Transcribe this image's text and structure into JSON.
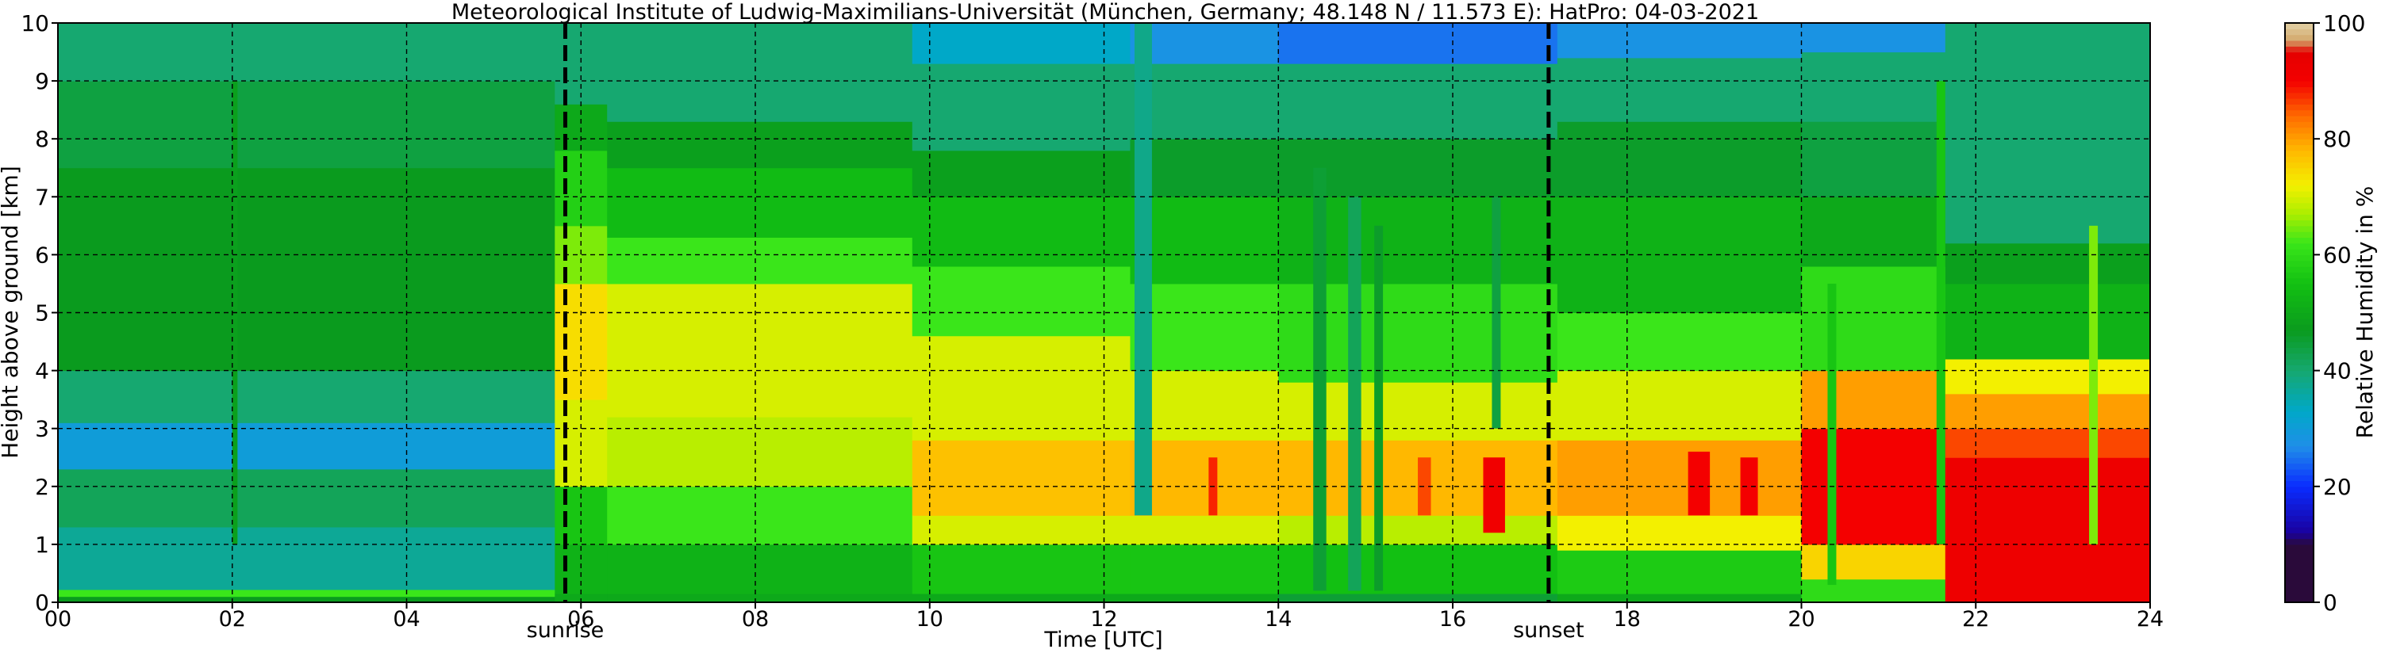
{
  "chart_data": {
    "type": "heatmap",
    "title": "Meteorological Institute of Ludwig-Maximilians-Universität (München, Germany; 48.148 N / 11.573 E):    HatPro: 04-03-2021",
    "xlabel": "Time [UTC]",
    "ylabel": "Height above ground [km]",
    "xlim": [
      0,
      24
    ],
    "ylim": [
      0,
      10
    ],
    "x_ticks": [
      "00",
      "02",
      "04",
      "06",
      "08",
      "10",
      "12",
      "14",
      "16",
      "18",
      "20",
      "22",
      "24"
    ],
    "y_ticks": [
      "0",
      "1",
      "2",
      "3",
      "4",
      "5",
      "6",
      "7",
      "8",
      "9",
      "10"
    ],
    "grid": true,
    "colorbar": {
      "label": "Relative Humidity in %",
      "ticks": [
        "0",
        "20",
        "40",
        "60",
        "80",
        "100"
      ],
      "range": [
        0,
        100
      ],
      "stops": [
        {
          "value": 0,
          "color": "#2a0a3a"
        },
        {
          "value": 10,
          "color": "#2a0a3a"
        },
        {
          "value": 12,
          "color": "#1a009e"
        },
        {
          "value": 20,
          "color": "#0a2cff"
        },
        {
          "value": 27,
          "color": "#1f8fe8"
        },
        {
          "value": 33,
          "color": "#00a8c8"
        },
        {
          "value": 40,
          "color": "#16a870"
        },
        {
          "value": 47,
          "color": "#0a9b1e"
        },
        {
          "value": 55,
          "color": "#12c012"
        },
        {
          "value": 62,
          "color": "#3ae61a"
        },
        {
          "value": 67,
          "color": "#aaee00"
        },
        {
          "value": 72,
          "color": "#f3f000"
        },
        {
          "value": 78,
          "color": "#ffb800"
        },
        {
          "value": 84,
          "color": "#ff6a00"
        },
        {
          "value": 90,
          "color": "#f40000"
        },
        {
          "value": 95,
          "color": "#e40000"
        },
        {
          "value": 97,
          "color": "#d2a76a"
        },
        {
          "value": 100,
          "color": "#e2d1a6"
        }
      ]
    },
    "annotations": [
      {
        "label": "sunrise",
        "x": 5.82
      },
      {
        "label": "sunset",
        "x": 17.1
      }
    ],
    "series": [
      {
        "t0": 0.0,
        "t1": 5.7,
        "layers": [
          [
            0,
            0.1,
            47
          ],
          [
            0.1,
            0.22,
            62
          ],
          [
            0.22,
            1.3,
            37
          ],
          [
            1.3,
            2.3,
            42
          ],
          [
            2.3,
            3.1,
            30
          ],
          [
            3.1,
            4.0,
            40
          ],
          [
            4.0,
            7.5,
            47
          ],
          [
            7.5,
            9.0,
            44
          ],
          [
            9.0,
            10.0,
            40
          ]
        ]
      },
      {
        "t0": 5.7,
        "t1": 6.3,
        "layers": [
          [
            0,
            0.15,
            50
          ],
          [
            0.15,
            1.0,
            52
          ],
          [
            1.0,
            2.0,
            56
          ],
          [
            2.0,
            3.5,
            70
          ],
          [
            3.5,
            5.5,
            74
          ],
          [
            5.5,
            6.5,
            65
          ],
          [
            6.5,
            7.8,
            58
          ],
          [
            7.8,
            8.6,
            50
          ],
          [
            8.6,
            10.0,
            40
          ]
        ]
      },
      {
        "t0": 6.3,
        "t1": 9.8,
        "layers": [
          [
            0,
            0.15,
            50
          ],
          [
            0.15,
            1.0,
            52
          ],
          [
            1.0,
            2.0,
            62
          ],
          [
            2.0,
            3.2,
            68
          ],
          [
            3.2,
            5.5,
            70
          ],
          [
            5.5,
            6.3,
            62
          ],
          [
            6.3,
            7.5,
            54
          ],
          [
            7.5,
            8.3,
            48
          ],
          [
            8.3,
            10.0,
            40
          ]
        ]
      },
      {
        "t0": 9.8,
        "t1": 12.3,
        "layers": [
          [
            0,
            0.15,
            50
          ],
          [
            0.15,
            1.0,
            56
          ],
          [
            1.0,
            1.5,
            70
          ],
          [
            1.5,
            2.8,
            77
          ],
          [
            2.8,
            4.6,
            70
          ],
          [
            4.6,
            5.8,
            62
          ],
          [
            5.8,
            7.0,
            54
          ],
          [
            7.0,
            7.8,
            48
          ],
          [
            7.8,
            9.3,
            40
          ],
          [
            9.3,
            10.0,
            33
          ]
        ]
      },
      {
        "t0": 12.3,
        "t1": 14.0,
        "layers": [
          [
            0,
            0.15,
            50
          ],
          [
            0.15,
            1.0,
            56
          ],
          [
            1.0,
            1.5,
            70
          ],
          [
            1.5,
            2.8,
            78
          ],
          [
            2.8,
            4.0,
            70
          ],
          [
            4.0,
            5.5,
            62
          ],
          [
            5.5,
            7.0,
            54
          ],
          [
            7.0,
            8.0,
            46
          ],
          [
            8.0,
            9.3,
            40
          ],
          [
            9.3,
            10.0,
            28
          ]
        ]
      },
      {
        "t0": 14.0,
        "t1": 17.2,
        "layers": [
          [
            0,
            0.15,
            45
          ],
          [
            0.15,
            1.0,
            55
          ],
          [
            1.0,
            1.5,
            68
          ],
          [
            1.5,
            2.8,
            78
          ],
          [
            2.8,
            3.8,
            70
          ],
          [
            3.8,
            5.5,
            60
          ],
          [
            5.5,
            7.0,
            52
          ],
          [
            7.0,
            8.0,
            46
          ],
          [
            8.0,
            9.3,
            40
          ],
          [
            9.3,
            10.0,
            25
          ]
        ]
      },
      {
        "t0": 17.2,
        "t1": 20.0,
        "layers": [
          [
            0,
            0.15,
            50
          ],
          [
            0.15,
            0.9,
            57
          ],
          [
            0.9,
            1.5,
            72
          ],
          [
            1.5,
            2.8,
            80
          ],
          [
            2.8,
            4.0,
            70
          ],
          [
            4.0,
            5.0,
            62
          ],
          [
            5.0,
            7.0,
            52
          ],
          [
            7.0,
            8.3,
            46
          ],
          [
            8.3,
            9.4,
            40
          ],
          [
            9.4,
            10.0,
            28
          ]
        ]
      },
      {
        "t0": 20.0,
        "t1": 21.65,
        "layers": [
          [
            0,
            0.4,
            60
          ],
          [
            0.4,
            1.0,
            75
          ],
          [
            1.0,
            3.0,
            90
          ],
          [
            3.0,
            4.0,
            80
          ],
          [
            4.0,
            5.8,
            60
          ],
          [
            5.8,
            7.0,
            50
          ],
          [
            7.0,
            8.3,
            44
          ],
          [
            8.3,
            9.5,
            40
          ],
          [
            9.5,
            10.0,
            28
          ]
        ]
      },
      {
        "t0": 21.65,
        "t1": 24.0,
        "layers": [
          [
            0,
            2.5,
            92
          ],
          [
            2.5,
            3.0,
            86
          ],
          [
            3.0,
            3.6,
            80
          ],
          [
            3.6,
            4.2,
            72
          ],
          [
            4.2,
            5.5,
            52
          ],
          [
            5.5,
            6.2,
            48
          ],
          [
            6.2,
            10.0,
            40
          ]
        ]
      }
    ],
    "patches": [
      {
        "t0": 2.0,
        "t1": 2.06,
        "h0": 1.0,
        "h1": 9.0,
        "v": 48
      },
      {
        "t0": 12.35,
        "t1": 12.55,
        "h0": 1.5,
        "h1": 10.0,
        "v": 38
      },
      {
        "t0": 13.2,
        "t1": 13.3,
        "h0": 1.5,
        "h1": 2.5,
        "v": 88
      },
      {
        "t0": 14.4,
        "t1": 14.55,
        "h0": 0.2,
        "h1": 7.5,
        "v": 45
      },
      {
        "t0": 14.8,
        "t1": 14.95,
        "h0": 0.2,
        "h1": 7.0,
        "v": 42
      },
      {
        "t0": 15.1,
        "t1": 15.2,
        "h0": 0.2,
        "h1": 6.5,
        "v": 46
      },
      {
        "t0": 15.6,
        "t1": 15.75,
        "h0": 1.5,
        "h1": 2.5,
        "v": 86
      },
      {
        "t0": 16.35,
        "t1": 16.6,
        "h0": 1.2,
        "h1": 2.5,
        "v": 91
      },
      {
        "t0": 16.45,
        "t1": 16.55,
        "h0": 3.0,
        "h1": 7.0,
        "v": 44
      },
      {
        "t0": 18.7,
        "t1": 18.95,
        "h0": 1.5,
        "h1": 2.6,
        "v": 90
      },
      {
        "t0": 19.3,
        "t1": 19.5,
        "h0": 1.5,
        "h1": 2.5,
        "v": 90
      },
      {
        "t0": 20.3,
        "t1": 20.4,
        "h0": 0.3,
        "h1": 5.5,
        "v": 56
      },
      {
        "t0": 21.55,
        "t1": 21.65,
        "h0": 1.0,
        "h1": 9.0,
        "v": 56
      },
      {
        "t0": 23.3,
        "t1": 23.4,
        "h0": 1.0,
        "h1": 6.5,
        "v": 65
      }
    ]
  }
}
